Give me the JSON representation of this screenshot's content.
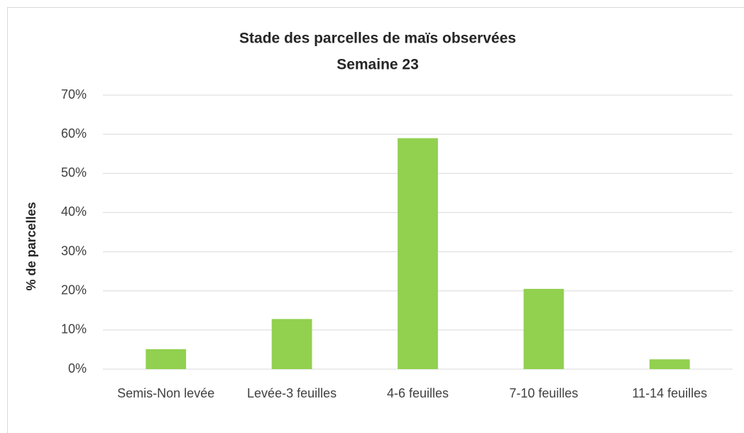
{
  "chart_data": {
    "type": "bar",
    "title": "Stade des parcelles de maïs observées",
    "subtitle": "Semaine 23",
    "y_label": "% de parcelles",
    "categories": [
      "Semis-Non levée",
      "Levée-3 feuilles",
      "4-6 feuilles",
      "7-10 feuilles",
      "11-14 feuilles"
    ],
    "values": [
      5.1,
      12.8,
      59,
      20.5,
      2.5
    ],
    "color": "#92d050",
    "ylim": [
      0,
      70
    ],
    "yticks": [
      {
        "value": 0,
        "label": "0%"
      },
      {
        "value": 10,
        "label": "10%"
      },
      {
        "value": 20,
        "label": "20%"
      },
      {
        "value": 30,
        "label": "30%"
      },
      {
        "value": 40,
        "label": "40%"
      },
      {
        "value": 50,
        "label": "50%"
      },
      {
        "value": 60,
        "label": "60%"
      },
      {
        "value": 70,
        "label": "70%"
      }
    ],
    "grid": true
  }
}
